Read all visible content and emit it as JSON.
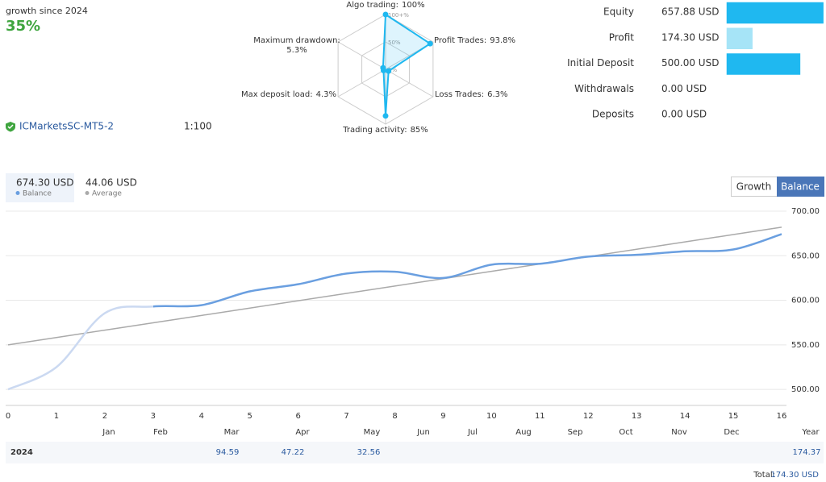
{
  "header": {
    "growth_label": "growth since 2024",
    "growth_value": "35%",
    "server": "ICMarketsSC-MT5-2",
    "leverage": "1:100"
  },
  "chart_data": [
    {
      "type": "radar",
      "categories": [
        "Algo trading:",
        "Profit Trades:",
        "Loss Trades:",
        "Trading activity:",
        "Max deposit load:",
        "Maximum drawdown:"
      ],
      "values": [
        100,
        93.8,
        6.3,
        85,
        4.3,
        5.3
      ],
      "value_labels": [
        "100%",
        "93.8%",
        "6.3%",
        "85%",
        "4.3%",
        "5.3%"
      ],
      "rlim": [
        0,
        100
      ],
      "rticks": [
        {
          "value": 0,
          "label": "0%"
        },
        {
          "value": 50,
          "label": "50%"
        },
        {
          "value": 100,
          "label": "100+%"
        }
      ],
      "color": "#1fb8f0"
    },
    {
      "type": "bar",
      "orientation": "horizontal",
      "categories": [
        "Equity",
        "Profit",
        "Initial Deposit",
        "Withdrawals",
        "Deposits"
      ],
      "values": [
        657.88,
        174.3,
        500,
        0,
        0
      ],
      "value_labels": [
        "657.88 USD",
        "174.30 USD",
        "500.00 USD",
        "0.00 USD",
        "0.00 USD"
      ],
      "xlim": [
        0,
        660
      ],
      "colors": [
        "#1fb8f0",
        "#a6e4f7",
        "#1fb8f0",
        "#a6e4f7",
        "#a6e4f7"
      ]
    },
    {
      "type": "line",
      "x": [
        0,
        1,
        2,
        3,
        4,
        5,
        6,
        7,
        8,
        9,
        10,
        11,
        12,
        13,
        14,
        15,
        16
      ],
      "xlim": [
        0,
        16
      ],
      "xticks": [
        0,
        1,
        2,
        3,
        4,
        5,
        6,
        7,
        8,
        9,
        10,
        11,
        12,
        13,
        14,
        15,
        16
      ],
      "ylim": [
        482,
        700
      ],
      "yticks": [
        {
          "value": 500,
          "label": "500.00"
        },
        {
          "value": 550,
          "label": "550.00"
        },
        {
          "value": 600,
          "label": "600.00"
        },
        {
          "value": 650,
          "label": "650.00"
        },
        {
          "value": 700,
          "label": "700.00"
        }
      ],
      "grid": true,
      "buttons": [
        "Growth",
        "Balance"
      ],
      "active_button": 1,
      "series": [
        {
          "name": "Balance",
          "legend_value": "674.30 USD",
          "color": "#6a9fe0",
          "faded_color": "#cbd9f1",
          "faded_before": 3,
          "values": [
            500,
            525,
            585.5,
            593,
            594.5,
            610,
            618,
            630,
            632,
            625,
            640,
            641,
            649,
            651,
            655,
            657,
            674.3
          ]
        },
        {
          "name": "Average",
          "legend_value": "44.06 USD",
          "color": "#aaaaaa",
          "values": [
            550,
            558.25,
            566.5,
            574.75,
            583,
            591.25,
            599.5,
            607.75,
            616,
            624.25,
            632.5,
            640.75,
            649,
            657.25,
            665.5,
            673.75,
            682
          ]
        }
      ]
    }
  ],
  "returns_table": {
    "headers": [
      "Jan",
      "Feb",
      "Mar",
      "Apr",
      "May",
      "Jun",
      "Jul",
      "Aug",
      "Sep",
      "Oct",
      "Nov",
      "Dec",
      "Year"
    ],
    "rows": [
      {
        "year": 2024,
        "cells": [
          null,
          null,
          94.59,
          47.22,
          32.56,
          null,
          null,
          null,
          null,
          null,
          null,
          null,
          174.37
        ]
      }
    ],
    "total_label": "Total:",
    "total_value": "174.30 USD"
  }
}
